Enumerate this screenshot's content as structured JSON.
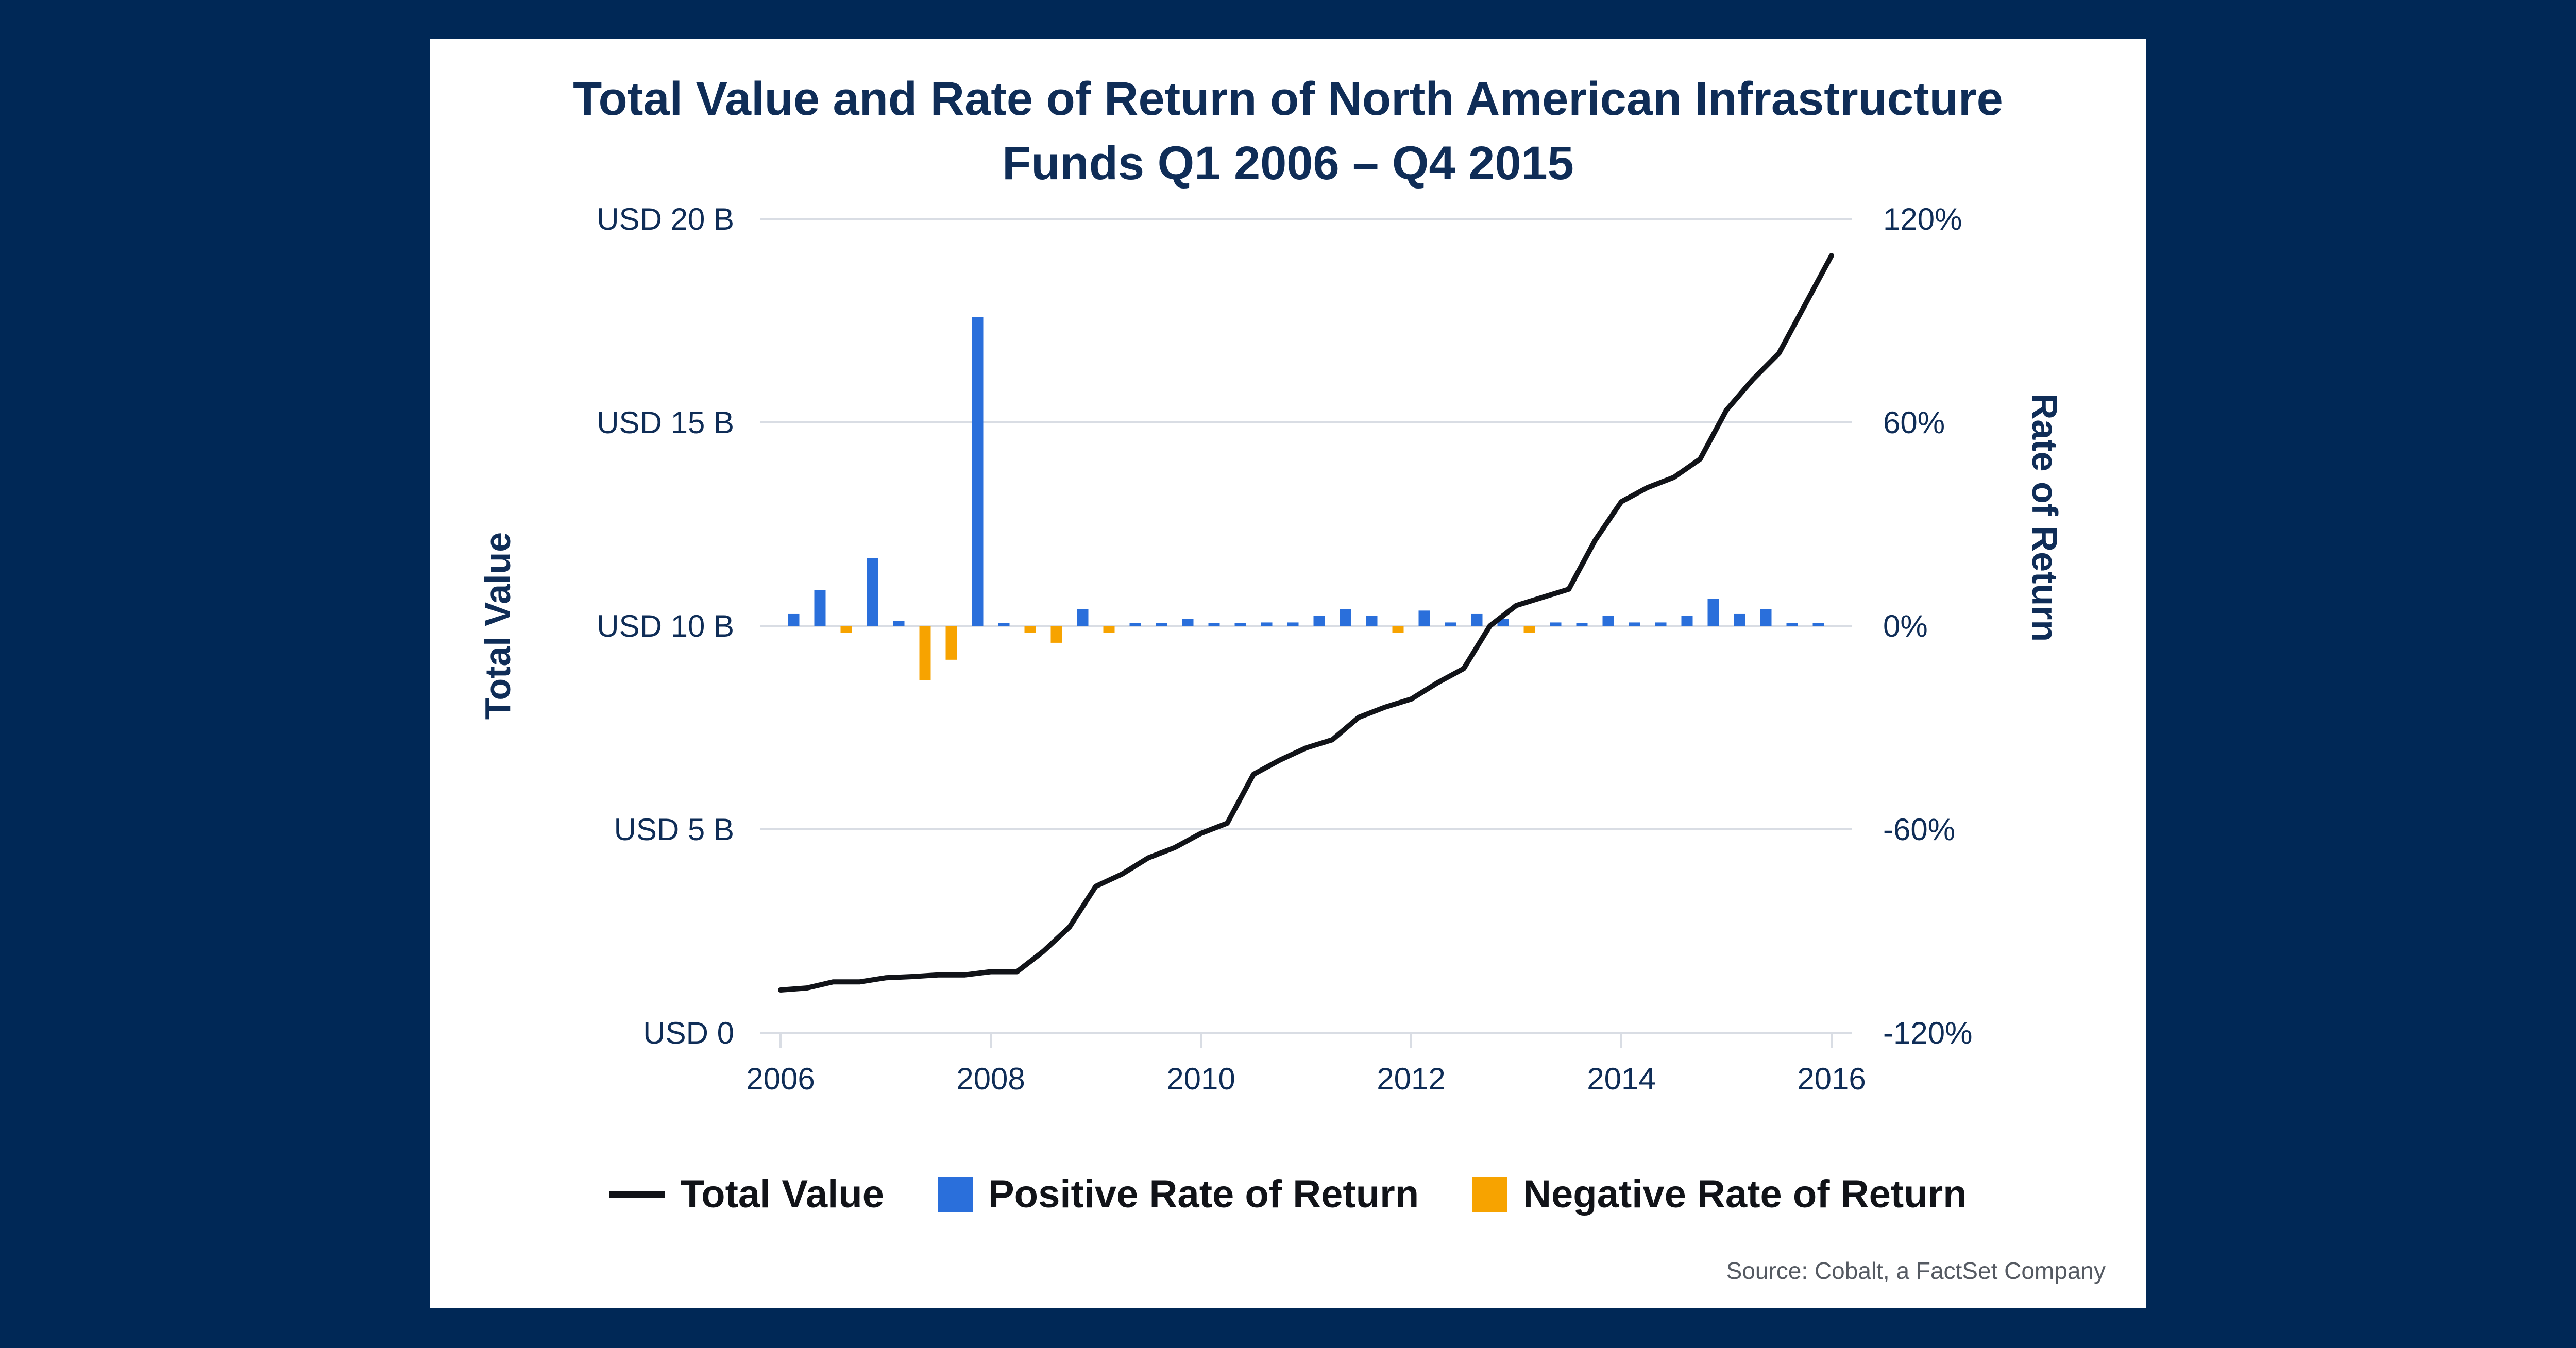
{
  "chart_data": {
    "type": "bar+line",
    "title_lines": [
      "Total Value and Rate of Return of North American Infrastructure",
      "Funds Q1 2006 – Q4 2015"
    ],
    "y_left_label": "Total Value",
    "y_right_label": "Rate of Return",
    "y_left_range": [
      0,
      20
    ],
    "y_right_range": [
      -120,
      120
    ],
    "x_range": [
      2006,
      2016
    ],
    "x_ticks": [
      "2006",
      "2008",
      "2010",
      "2012",
      "2014",
      "2016"
    ],
    "y_left_ticks": [
      "USD 0",
      "USD 5 B",
      "USD 10 B",
      "USD 15 B",
      "USD 20 B"
    ],
    "y_right_ticks": [
      "-120%",
      "-60%",
      "0%",
      "60%",
      "120%"
    ],
    "colors": {
      "total_value": "#111318",
      "positive": "#2a6fdb",
      "negative": "#f7a300",
      "grid": "#d9dde4",
      "text": "#0f2d57"
    },
    "series": [
      {
        "name": "Total Value",
        "unit": "USD billions",
        "x": [
          2006.0,
          2006.25,
          2006.5,
          2006.75,
          2007.0,
          2007.25,
          2007.5,
          2007.75,
          2008.0,
          2008.25,
          2008.5,
          2008.75,
          2009.0,
          2009.25,
          2009.5,
          2009.75,
          2010.0,
          2010.25,
          2010.5,
          2010.75,
          2011.0,
          2011.25,
          2011.5,
          2011.75,
          2012.0,
          2012.25,
          2012.5,
          2012.75,
          2013.0,
          2013.25,
          2013.5,
          2013.75,
          2014.0,
          2014.25,
          2014.5,
          2014.75,
          2015.0,
          2015.25,
          2015.5,
          2015.75,
          2016.0
        ],
        "values": [
          1.05,
          1.1,
          1.25,
          1.25,
          1.35,
          1.38,
          1.42,
          1.42,
          1.5,
          1.5,
          2.0,
          2.6,
          3.6,
          3.9,
          4.3,
          4.55,
          4.9,
          5.15,
          6.35,
          6.7,
          7.0,
          7.2,
          7.75,
          8.0,
          8.2,
          8.6,
          8.95,
          10.0,
          10.5,
          10.7,
          10.9,
          12.1,
          13.05,
          13.4,
          13.65,
          14.1,
          15.3,
          16.05,
          16.7,
          17.9,
          19.1
        ]
      },
      {
        "name": "Rate of Return",
        "unit": "percent",
        "x": [
          2006.125,
          2006.375,
          2006.625,
          2006.875,
          2007.125,
          2007.375,
          2007.625,
          2007.875,
          2008.125,
          2008.375,
          2008.625,
          2008.875,
          2009.125,
          2009.375,
          2009.625,
          2009.875,
          2010.125,
          2010.375,
          2010.625,
          2010.875,
          2011.125,
          2011.375,
          2011.625,
          2011.875,
          2012.125,
          2012.375,
          2012.625,
          2012.875,
          2013.125,
          2013.375,
          2013.625,
          2013.875,
          2014.125,
          2014.375,
          2014.625,
          2014.875,
          2015.125,
          2015.375,
          2015.625,
          2015.875
        ],
        "values": [
          3.5,
          10.5,
          -2,
          20,
          1.5,
          -16,
          -10,
          91,
          0,
          -2,
          -5,
          5,
          -2,
          0.5,
          0,
          2,
          0.3,
          0,
          1,
          1,
          3,
          5,
          3,
          -2,
          4.5,
          1,
          3.5,
          2,
          -2,
          1,
          0.5,
          3,
          1,
          1,
          3,
          8,
          3.5,
          5,
          0.5,
          0.5
        ]
      }
    ],
    "legend": [
      {
        "key": "total_value",
        "label": "Total Value"
      },
      {
        "key": "positive",
        "label": "Positive Rate of Return"
      },
      {
        "key": "negative",
        "label": "Negative Rate of Return"
      }
    ],
    "source": "Source: Cobalt, a FactSet Company"
  }
}
